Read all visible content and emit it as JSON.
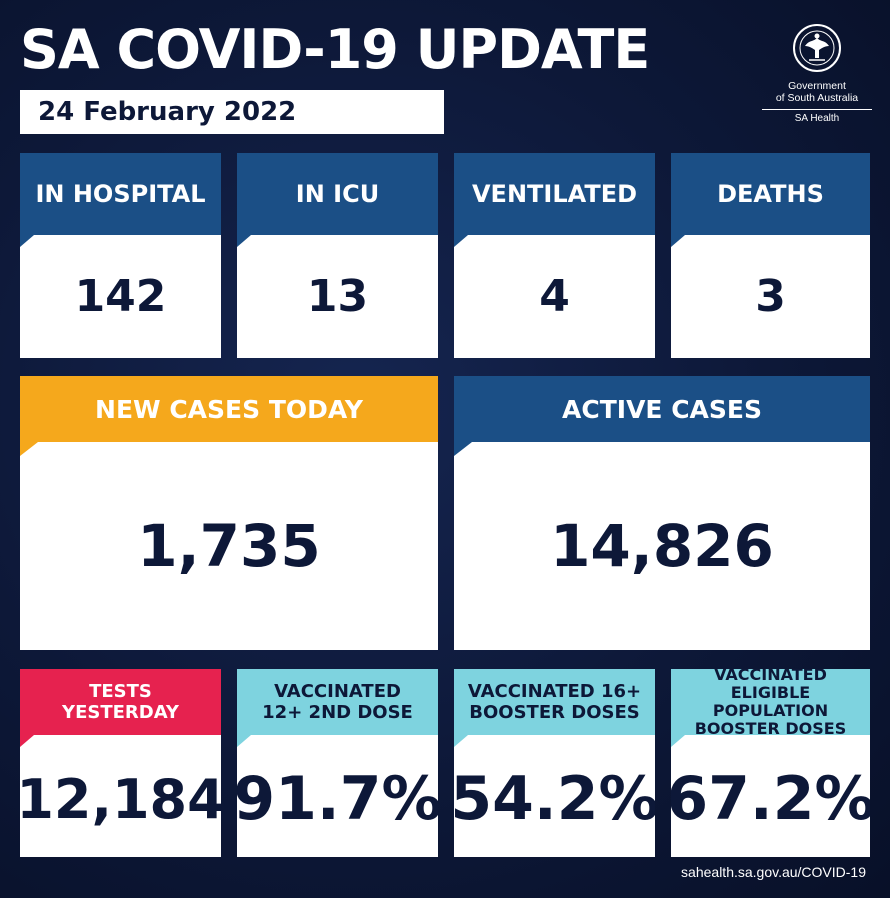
{
  "header": {
    "title": "SA COVID-19 UPDATE",
    "date": "24 February 2022"
  },
  "logo": {
    "seal_text": "SOUTH AUSTRALIA",
    "line1": "Government",
    "line2": "of South Australia",
    "sub": "SA Health"
  },
  "stats_top": [
    {
      "label": "IN HOSPITAL",
      "value": "142"
    },
    {
      "label": "IN ICU",
      "value": "13"
    },
    {
      "label": "VENTILATED",
      "value": "4"
    },
    {
      "label": "DEATHS",
      "value": "3"
    }
  ],
  "stats_mid": [
    {
      "label": "NEW CASES TODAY",
      "value": "1,735"
    },
    {
      "label": "ACTIVE CASES",
      "value": "14,826"
    }
  ],
  "stats_bottom": [
    {
      "label": "TESTS YESTERDAY",
      "value": "12,184"
    },
    {
      "label": "VACCINATED 12+ 2ND DOSE",
      "value": "91.7%"
    },
    {
      "label": "VACCINATED 16+ BOOSTER DOSES",
      "value": "54.2%"
    },
    {
      "label": "VACCINATED ELIGIBLE POPULATION BOOSTER DOSES",
      "value": "67.2%"
    }
  ],
  "colors": {
    "background": "#0d1838",
    "blue_header": "#1b4f86",
    "gold_header": "#f5a81c",
    "red_header": "#e6224f",
    "teal_header": "#7ed3df"
  },
  "footer": {
    "url": "sahealth.sa.gov.au/COVID-19"
  }
}
